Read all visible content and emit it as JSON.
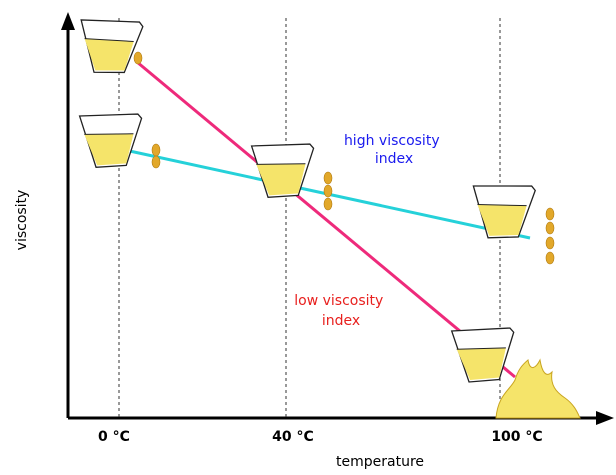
{
  "y_axis_label": "viscosity",
  "x_axis_label": "temperature",
  "ticks": [
    "0 °C",
    "40 °C",
    "100 °C"
  ],
  "annotations": {
    "high": {
      "lines": [
        "high viscosity",
        "index"
      ]
    },
    "low": {
      "lines": [
        "low viscosity",
        "index"
      ]
    }
  }
}
